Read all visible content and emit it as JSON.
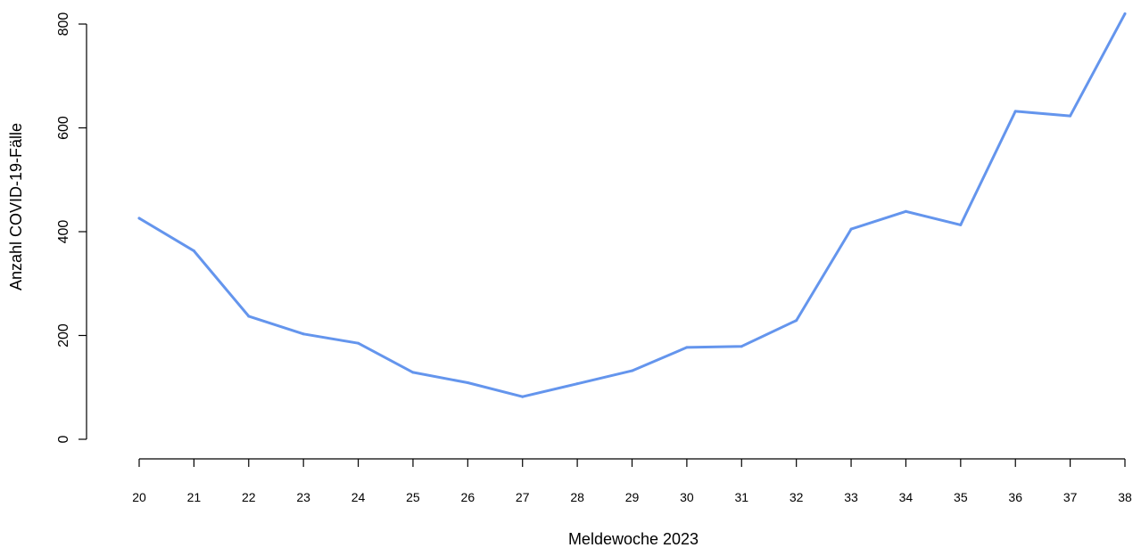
{
  "chart_data": {
    "type": "line",
    "title": "",
    "xlabel": "Meldewoche 2023",
    "ylabel": "Anzahl COVID-19-Fälle",
    "x": [
      20,
      21,
      22,
      23,
      24,
      25,
      26,
      27,
      28,
      29,
      30,
      31,
      32,
      33,
      34,
      35,
      36,
      37,
      38
    ],
    "series": [
      {
        "values": [
          426,
          363,
          237,
          203,
          185,
          129,
          109,
          82,
          107,
          132,
          177,
          179,
          229,
          405,
          439,
          413,
          632,
          623,
          820
        ],
        "color": "#6495ED"
      }
    ],
    "x_ticks": [
      20,
      21,
      22,
      23,
      24,
      25,
      26,
      27,
      28,
      29,
      30,
      31,
      32,
      33,
      34,
      35,
      36,
      37,
      38
    ],
    "y_ticks": [
      0,
      200,
      400,
      600,
      800
    ],
    "xlim": [
      20,
      38
    ],
    "ylim": [
      0,
      820
    ],
    "grid": false,
    "legend": "none"
  }
}
